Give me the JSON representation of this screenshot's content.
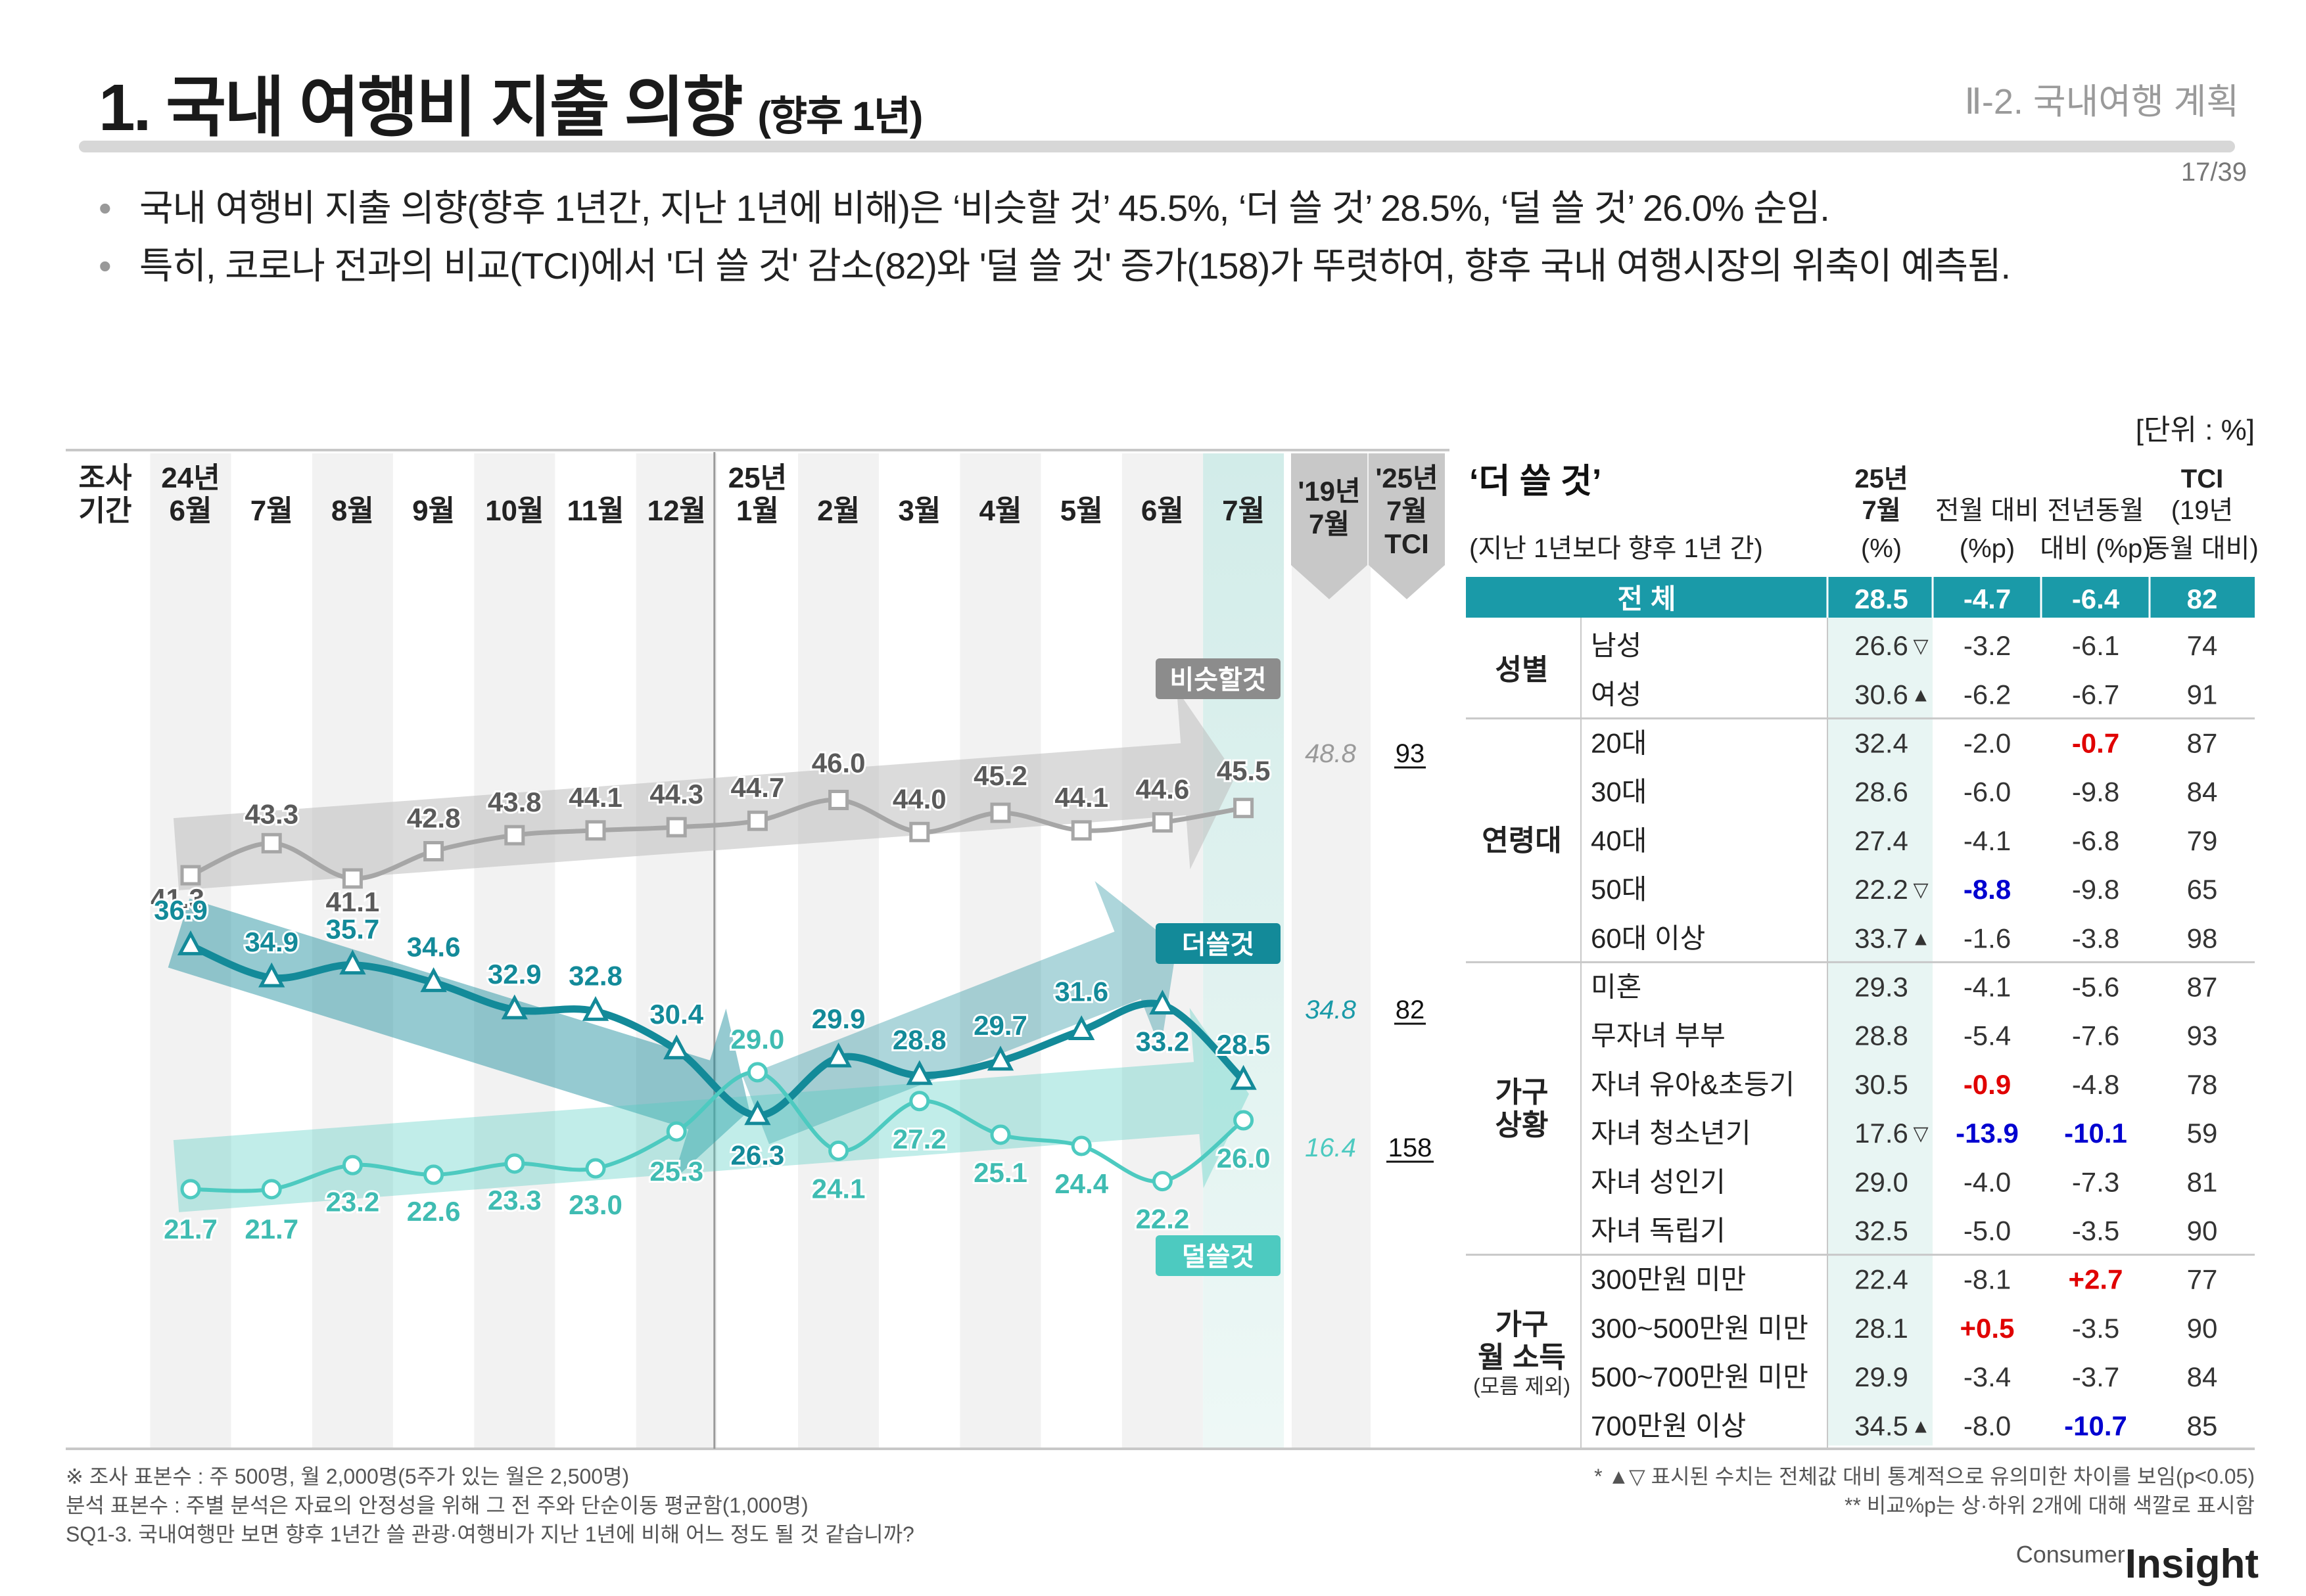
{
  "header": {
    "title": "1. 국내 여행비 지출 의향",
    "title_sub": "(향후 1년)",
    "section": "Ⅱ-2. 국내여행 계획",
    "page": "17/39"
  },
  "bullets": [
    "국내 여행비 지출 의향(향후 1년간, 지난 1년에 비해)은 ‘비슷할 것’ 45.5%, ‘더 쓸 것’ 28.5%, ‘덜 쓸 것’ 26.0% 순임.",
    "특히, 코로나 전과의 비교(TCI)에서 '더 쓸 것' 감소(82)와 '덜 쓸 것' 증가(158)가 뚜렷하여, 향후 국내 여행시장의 위축이 예측됨."
  ],
  "unit_label": "[단위 : %]",
  "chart_data": {
    "type": "line",
    "period_label": [
      "조사",
      "기간"
    ],
    "x_labels": [
      [
        "24년",
        "6월"
      ],
      [
        "7월"
      ],
      [
        "8월"
      ],
      [
        "9월"
      ],
      [
        "10월"
      ],
      [
        "11월"
      ],
      [
        "12월"
      ],
      [
        "25년",
        "1월"
      ],
      [
        "2월"
      ],
      [
        "3월"
      ],
      [
        "4월"
      ],
      [
        "5월"
      ],
      [
        "6월"
      ],
      [
        "7월"
      ]
    ],
    "ylim": [
      18,
      50
    ],
    "series": [
      {
        "name": "비슷할것",
        "color": "#a6a6a6",
        "marker": "square",
        "values": [
          41.3,
          43.3,
          41.1,
          42.8,
          43.8,
          44.1,
          44.3,
          44.7,
          46.0,
          44.0,
          45.2,
          44.1,
          44.6,
          45.5
        ],
        "ref_2019": "48.8",
        "tci": "93"
      },
      {
        "name": "더쓸것",
        "color": "#138a99",
        "marker": "triangle",
        "values": [
          36.9,
          34.9,
          35.7,
          34.6,
          32.9,
          32.8,
          30.4,
          26.3,
          29.9,
          28.8,
          29.7,
          31.6,
          33.2,
          28.5
        ],
        "ref_2019": "34.8",
        "tci": "82"
      },
      {
        "name": "덜쓸것",
        "color": "#4dcac0",
        "marker": "circle",
        "values": [
          21.7,
          21.7,
          23.2,
          22.6,
          23.3,
          23.0,
          25.3,
          29.0,
          24.1,
          27.2,
          25.1,
          24.4,
          22.2,
          26.0
        ],
        "ref_2019": "16.4",
        "tci": "158"
      }
    ],
    "ref_header": [
      [
        "'19년",
        "7월"
      ],
      [
        "'25년",
        "7월",
        "TCI"
      ]
    ]
  },
  "table": {
    "title": "‘더 쓸 것’",
    "subtitle": "(지난 1년보다 향후 1년 간)",
    "headers": [
      [
        "25년",
        "7월",
        "(%)"
      ],
      [
        "전월 대비",
        "(%p)"
      ],
      [
        "전년동월",
        "대비 (%p)"
      ],
      [
        "TCI",
        "(19년",
        "동월 대비)"
      ]
    ],
    "total": {
      "label": "전  체",
      "values": [
        "28.5",
        "-4.7",
        "-6.4",
        "82"
      ]
    },
    "groups": [
      {
        "label": [
          "성별"
        ],
        "rows": [
          {
            "label": "남성",
            "v": "26.6",
            "mark": "▽",
            "m": "-3.2",
            "y": "-6.1",
            "t": "74"
          },
          {
            "label": "여성",
            "v": "30.6",
            "mark": "▲",
            "m": "-6.2",
            "y": "-6.7",
            "t": "91"
          }
        ]
      },
      {
        "label": [
          "연령대"
        ],
        "rows": [
          {
            "label": "20대",
            "v": "32.4",
            "mark": "",
            "m": "-2.0",
            "y": "-0.7",
            "yc": "red",
            "t": "87"
          },
          {
            "label": "30대",
            "v": "28.6",
            "mark": "",
            "m": "-6.0",
            "y": "-9.8",
            "t": "84"
          },
          {
            "label": "40대",
            "v": "27.4",
            "mark": "",
            "m": "-4.1",
            "y": "-6.8",
            "t": "79"
          },
          {
            "label": "50대",
            "v": "22.2",
            "mark": "▽",
            "m": "-8.8",
            "mc": "blue",
            "y": "-9.8",
            "t": "65"
          },
          {
            "label": "60대 이상",
            "v": "33.7",
            "mark": "▲",
            "m": "-1.6",
            "y": "-3.8",
            "t": "98"
          }
        ]
      },
      {
        "label": [
          "가구",
          "상황"
        ],
        "rows": [
          {
            "label": "미혼",
            "v": "29.3",
            "mark": "",
            "m": "-4.1",
            "y": "-5.6",
            "t": "87"
          },
          {
            "label": "무자녀 부부",
            "v": "28.8",
            "mark": "",
            "m": "-5.4",
            "y": "-7.6",
            "t": "93"
          },
          {
            "label": "자녀 유아&초등기",
            "v": "30.5",
            "mark": "",
            "m": "-0.9",
            "mc": "red",
            "y": "-4.8",
            "t": "78"
          },
          {
            "label": "자녀 청소년기",
            "v": "17.6",
            "mark": "▽",
            "m": "-13.9",
            "mc": "blue",
            "y": "-10.1",
            "yc": "blue",
            "t": "59"
          },
          {
            "label": "자녀 성인기",
            "v": "29.0",
            "mark": "",
            "m": "-4.0",
            "y": "-7.3",
            "t": "81"
          },
          {
            "label": "자녀 독립기",
            "v": "32.5",
            "mark": "",
            "m": "-5.0",
            "y": "-3.5",
            "t": "90"
          }
        ]
      },
      {
        "label": [
          "가구",
          "월 소득"
        ],
        "note": "(모름 제외)",
        "rows": [
          {
            "label": "300만원 미만",
            "v": "22.4",
            "mark": "",
            "m": "-8.1",
            "y": "+2.7",
            "yc": "red",
            "t": "77"
          },
          {
            "label": "300~500만원 미만",
            "v": "28.1",
            "mark": "",
            "m": "+0.5",
            "mc": "red",
            "y": "-3.5",
            "t": "90"
          },
          {
            "label": "500~700만원 미만",
            "v": "29.9",
            "mark": "",
            "m": "-3.4",
            "y": "-3.7",
            "t": "84"
          },
          {
            "label": "700만원 이상",
            "v": "34.5",
            "mark": "▲",
            "m": "-8.0",
            "y": "-10.7",
            "yc": "blue",
            "t": "85"
          }
        ]
      }
    ]
  },
  "colors": {
    "teal": "#1a9aa8",
    "red": "#e00000",
    "blue": "#0000d0"
  },
  "footer": {
    "left": [
      "※ 조사 표본수 : 주 500명, 월 2,000명(5주가 있는 월은 2,500명)",
      " 분석 표본수 : 주별 분석은 자료의 안정성을 위해 그 전 주와 단순이동 평균함(1,000명)",
      "SQ1-3. 국내여행만 보면 향후 1년간 쓸 관광·여행비가 지난 1년에 비해 어느 정도 될 것 같습니까?"
    ],
    "right": [
      "* ▲▽ 표시된 수치는 전체값 대비 통계적으로 유의미한 차이를 보임(p<0.05)",
      "** 비교%p는 상·하위 2개에 대해 색깔로 표시함"
    ],
    "logo_small": "Consumer",
    "logo_big": "Insight"
  }
}
